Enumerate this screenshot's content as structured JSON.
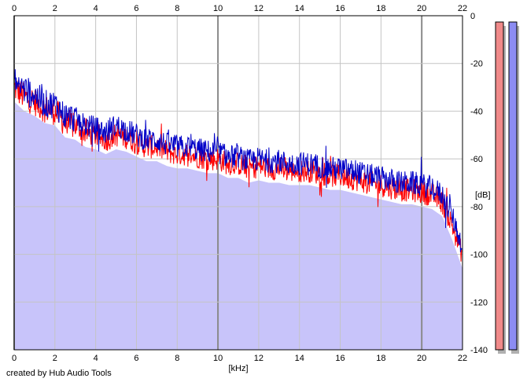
{
  "credit": "created by Hub Audio Tools",
  "colors": {
    "background": "#ffffff",
    "plot_background": "#ffffff",
    "grid": "#c4c4c4",
    "grid_major": "#8a8a8a",
    "fill": "#c8c4fa",
    "left_channel": "#ff0000",
    "right_channel": "#0000c8",
    "meter_left": "#f08a8a",
    "meter_right": "#8c8cf2",
    "meter_shadow": "#b0b0b0"
  },
  "meters": {
    "left": {
      "color_name": "red-level-meter",
      "level_fraction": 1.0
    },
    "right": {
      "color_name": "blue-level-meter",
      "level_fraction": 1.0
    }
  },
  "chart_data": {
    "type": "line",
    "title": "",
    "xlabel": "[kHz]",
    "ylabel": "[dB]",
    "xlim": [
      0,
      22
    ],
    "ylim": [
      -140,
      0
    ],
    "x_ticks": [
      "0",
      "2",
      "4",
      "6",
      "8",
      "10",
      "12",
      "14",
      "16",
      "18",
      "20",
      "22"
    ],
    "y_ticks": [
      "0",
      "-20",
      "-40",
      "-60",
      "-80",
      "-100",
      "-120",
      "-140"
    ],
    "grid": true,
    "series": [
      {
        "color": "#0000c8",
        "x": [
          0,
          0.5,
          1,
          1.5,
          2,
          2.5,
          3,
          3.5,
          4,
          4.5,
          5,
          5.5,
          6,
          6.5,
          7,
          7.5,
          8,
          8.5,
          9,
          9.5,
          10,
          10.5,
          11,
          11.5,
          12,
          12.5,
          13,
          13.5,
          14,
          14.5,
          15,
          15.5,
          16,
          16.5,
          17,
          17.5,
          18,
          18.5,
          19,
          19.5,
          20,
          20.5,
          21,
          21.5,
          22
        ],
        "y": [
          -27,
          -31,
          -33,
          -37,
          -37,
          -42,
          -43,
          -46,
          -47,
          -49,
          -46,
          -48,
          -50,
          -52,
          -52,
          -54,
          -55,
          -55,
          -56,
          -57,
          -57,
          -59,
          -59,
          -61,
          -60,
          -61,
          -61,
          -62,
          -62,
          -62,
          -63,
          -64,
          -64,
          -65,
          -66,
          -67,
          -68,
          -69,
          -70,
          -70,
          -71,
          -72,
          -75,
          -84,
          -97
        ]
      },
      {
        "color": "#ff0000",
        "x": [
          0,
          0.5,
          1,
          1.5,
          2,
          2.5,
          3,
          3.5,
          4,
          4.5,
          5,
          5.5,
          6,
          6.5,
          7,
          7.5,
          8,
          8.5,
          9,
          9.5,
          10,
          10.5,
          11,
          11.5,
          12,
          12.5,
          13,
          13.5,
          14,
          14.5,
          15,
          15.5,
          16,
          16.5,
          17,
          17.5,
          18,
          18.5,
          19,
          19.5,
          20,
          20.5,
          21,
          21.5,
          22
        ],
        "y": [
          -30,
          -34,
          -36,
          -39,
          -40,
          -45,
          -46,
          -49,
          -50,
          -52,
          -50,
          -51,
          -53,
          -55,
          -55,
          -57,
          -58,
          -58,
          -59,
          -60,
          -60,
          -62,
          -62,
          -64,
          -63,
          -64,
          -64,
          -65,
          -65,
          -65,
          -66,
          -67,
          -67,
          -68,
          -69,
          -70,
          -71,
          -72,
          -73,
          -73,
          -74,
          -75,
          -78,
          -88,
          -100
        ]
      }
    ]
  }
}
